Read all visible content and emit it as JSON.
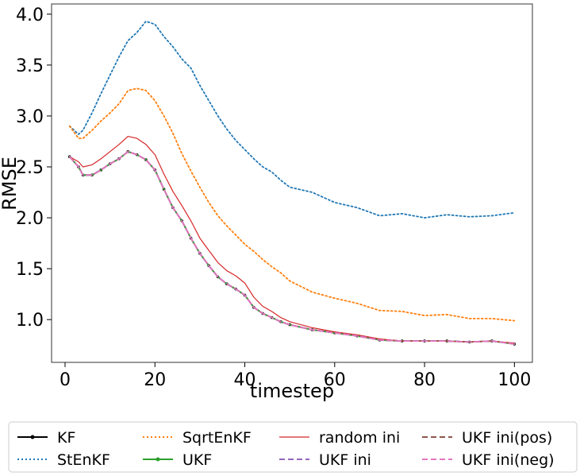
{
  "chart_data": {
    "type": "line",
    "xlabel": "timestep",
    "ylabel": "RMSE",
    "xlim": [
      -3,
      104
    ],
    "ylim": [
      0.58,
      4.1
    ],
    "xticks": [
      0,
      20,
      40,
      60,
      80,
      100
    ],
    "yticks": [
      1.0,
      1.5,
      2.0,
      2.5,
      3.0,
      3.5,
      4.0
    ],
    "xtick_labels": [
      "0",
      "20",
      "40",
      "60",
      "80",
      "100"
    ],
    "ytick_labels": [
      "1.0",
      "1.5",
      "2.0",
      "2.5",
      "3.0",
      "3.5",
      "4.0"
    ],
    "grid": false,
    "legend_position": "bottom, outside, 4 columns",
    "series": [
      {
        "name": "KF",
        "color": "#000000",
        "style": "solid-marker",
        "x": [
          1,
          3,
          4,
          6,
          8,
          10,
          12,
          14,
          16,
          18,
          20,
          22,
          24,
          26,
          28,
          30,
          32,
          34,
          36,
          38,
          40,
          42,
          44,
          46,
          48,
          50,
          55,
          60,
          65,
          70,
          75,
          80,
          85,
          90,
          95,
          100
        ],
        "y": [
          2.6,
          2.5,
          2.42,
          2.42,
          2.47,
          2.53,
          2.58,
          2.65,
          2.62,
          2.57,
          2.47,
          2.28,
          2.1,
          1.97,
          1.8,
          1.65,
          1.53,
          1.42,
          1.35,
          1.3,
          1.24,
          1.12,
          1.06,
          1.02,
          0.98,
          0.95,
          0.9,
          0.87,
          0.84,
          0.8,
          0.79,
          0.79,
          0.79,
          0.78,
          0.79,
          0.76
        ]
      },
      {
        "name": "StEnKF",
        "color": "#1f77b4",
        "style": "dotted",
        "x": [
          1,
          3,
          4,
          6,
          8,
          10,
          12,
          14,
          16,
          18,
          20,
          22,
          24,
          26,
          28,
          30,
          32,
          34,
          36,
          38,
          40,
          42,
          44,
          46,
          48,
          50,
          55,
          60,
          65,
          70,
          75,
          80,
          85,
          90,
          95,
          100
        ],
        "y": [
          2.9,
          2.82,
          2.86,
          3.03,
          3.22,
          3.4,
          3.58,
          3.74,
          3.82,
          3.93,
          3.9,
          3.78,
          3.68,
          3.56,
          3.47,
          3.3,
          3.15,
          3.0,
          2.87,
          2.76,
          2.67,
          2.58,
          2.5,
          2.45,
          2.37,
          2.3,
          2.25,
          2.15,
          2.1,
          2.02,
          2.04,
          2.0,
          2.03,
          2.01,
          2.02,
          2.05
        ]
      },
      {
        "name": "SqrtEnKF",
        "color": "#ff7f0e",
        "style": "dotted",
        "x": [
          1,
          3,
          4,
          6,
          8,
          10,
          12,
          14,
          16,
          18,
          20,
          22,
          24,
          26,
          28,
          30,
          32,
          34,
          36,
          38,
          40,
          42,
          44,
          46,
          48,
          50,
          55,
          60,
          65,
          70,
          75,
          80,
          85,
          90,
          95,
          100
        ],
        "y": [
          2.9,
          2.78,
          2.78,
          2.86,
          2.95,
          3.03,
          3.12,
          3.25,
          3.27,
          3.25,
          3.15,
          3.0,
          2.83,
          2.63,
          2.46,
          2.3,
          2.15,
          2.02,
          1.92,
          1.83,
          1.74,
          1.67,
          1.59,
          1.52,
          1.46,
          1.38,
          1.27,
          1.21,
          1.16,
          1.09,
          1.08,
          1.04,
          1.05,
          1.01,
          1.01,
          0.99
        ]
      },
      {
        "name": "UKF",
        "color": "#2ca02c",
        "style": "solid-marker",
        "x": [
          1,
          3,
          4,
          6,
          8,
          10,
          12,
          14,
          16,
          18,
          20,
          22,
          24,
          26,
          28,
          30,
          32,
          34,
          36,
          38,
          40,
          42,
          44,
          46,
          48,
          50,
          55,
          60,
          65,
          70,
          75,
          80,
          85,
          90,
          95,
          100
        ],
        "y": [
          2.6,
          2.5,
          2.42,
          2.42,
          2.47,
          2.53,
          2.58,
          2.65,
          2.62,
          2.57,
          2.47,
          2.28,
          2.1,
          1.97,
          1.8,
          1.65,
          1.53,
          1.42,
          1.35,
          1.3,
          1.24,
          1.12,
          1.06,
          1.02,
          0.98,
          0.95,
          0.9,
          0.87,
          0.84,
          0.8,
          0.79,
          0.79,
          0.79,
          0.78,
          0.79,
          0.76
        ]
      },
      {
        "name": "random ini",
        "color": "#d62728",
        "style": "solid",
        "x": [
          1,
          3,
          4,
          6,
          8,
          10,
          12,
          14,
          16,
          18,
          20,
          22,
          24,
          26,
          28,
          30,
          32,
          34,
          36,
          38,
          40,
          42,
          44,
          46,
          48,
          50,
          55,
          60,
          65,
          70,
          75,
          80,
          85,
          90,
          95,
          100
        ],
        "y": [
          2.6,
          2.55,
          2.5,
          2.52,
          2.58,
          2.65,
          2.72,
          2.8,
          2.78,
          2.72,
          2.62,
          2.43,
          2.26,
          2.12,
          1.97,
          1.8,
          1.68,
          1.56,
          1.48,
          1.43,
          1.36,
          1.22,
          1.13,
          1.08,
          1.02,
          0.98,
          0.92,
          0.88,
          0.85,
          0.81,
          0.79,
          0.79,
          0.79,
          0.78,
          0.79,
          0.77
        ]
      },
      {
        "name": "UKF ini",
        "color": "#9467bd",
        "style": "dashed",
        "x": [
          1,
          3,
          4,
          6,
          8,
          10,
          12,
          14,
          16,
          18,
          20,
          22,
          24,
          26,
          28,
          30,
          32,
          34,
          36,
          38,
          40,
          42,
          44,
          46,
          48,
          50,
          55,
          60,
          65,
          70,
          75,
          80,
          85,
          90,
          95,
          100
        ],
        "y": [
          2.6,
          2.5,
          2.42,
          2.42,
          2.47,
          2.53,
          2.58,
          2.65,
          2.62,
          2.57,
          2.47,
          2.28,
          2.1,
          1.97,
          1.8,
          1.65,
          1.53,
          1.42,
          1.35,
          1.3,
          1.24,
          1.12,
          1.06,
          1.02,
          0.98,
          0.95,
          0.9,
          0.87,
          0.84,
          0.8,
          0.79,
          0.79,
          0.79,
          0.78,
          0.79,
          0.76
        ]
      },
      {
        "name": "UKF ini(pos)",
        "color": "#8c564b",
        "style": "dashed",
        "x": [
          1,
          3,
          4,
          6,
          8,
          10,
          12,
          14,
          16,
          18,
          20,
          22,
          24,
          26,
          28,
          30,
          32,
          34,
          36,
          38,
          40,
          42,
          44,
          46,
          48,
          50,
          55,
          60,
          65,
          70,
          75,
          80,
          85,
          90,
          95,
          100
        ],
        "y": [
          2.6,
          2.5,
          2.42,
          2.42,
          2.47,
          2.53,
          2.58,
          2.65,
          2.62,
          2.57,
          2.47,
          2.28,
          2.1,
          1.97,
          1.8,
          1.65,
          1.53,
          1.42,
          1.35,
          1.3,
          1.24,
          1.12,
          1.06,
          1.02,
          0.98,
          0.95,
          0.9,
          0.87,
          0.84,
          0.8,
          0.79,
          0.79,
          0.79,
          0.78,
          0.79,
          0.76
        ]
      },
      {
        "name": "UKF ini(neg)",
        "color": "#e377c2",
        "style": "dashed",
        "x": [
          1,
          3,
          4,
          6,
          8,
          10,
          12,
          14,
          16,
          18,
          20,
          22,
          24,
          26,
          28,
          30,
          32,
          34,
          36,
          38,
          40,
          42,
          44,
          46,
          48,
          50,
          55,
          60,
          65,
          70,
          75,
          80,
          85,
          90,
          95,
          100
        ],
        "y": [
          2.6,
          2.5,
          2.42,
          2.42,
          2.47,
          2.53,
          2.58,
          2.65,
          2.62,
          2.57,
          2.47,
          2.28,
          2.1,
          1.97,
          1.8,
          1.65,
          1.53,
          1.42,
          1.35,
          1.3,
          1.24,
          1.12,
          1.06,
          1.02,
          0.98,
          0.95,
          0.9,
          0.87,
          0.84,
          0.8,
          0.79,
          0.79,
          0.79,
          0.78,
          0.79,
          0.76
        ]
      }
    ]
  }
}
